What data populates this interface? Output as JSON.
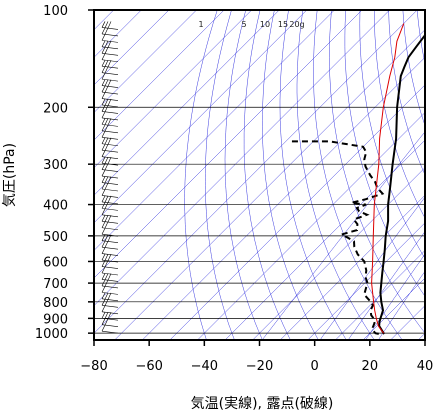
{
  "chart_data": {
    "type": "line",
    "subtype": "skew-t-log-p",
    "xlabel": "気温(実線), 露点(破線)",
    "ylabel": "気圧(hPa)",
    "x_ticks": [
      -80,
      -60,
      -40,
      -20,
      0,
      20,
      40
    ],
    "y_ticks": [
      100,
      200,
      300,
      400,
      500,
      600,
      700,
      800,
      900,
      1000
    ],
    "xlim": [
      -80,
      40
    ],
    "ylim": [
      1050,
      100
    ],
    "y_scale": "log",
    "grid": true,
    "mixing_ratio_labels": [
      "1",
      "5",
      "10",
      "15",
      "20g"
    ],
    "mixing_ratio_values": [
      1,
      5,
      10,
      15,
      20
    ],
    "colors": {
      "temperature": "#000000",
      "dewpoint": "#000000",
      "parcel": "#dd0000",
      "isotherms": "#3a3ae0",
      "adiabats": "#3a3ae0",
      "grid": "#000000"
    },
    "series": [
      {
        "kind": "temperature",
        "points": [
          [
            1005,
            25.5
          ],
          [
            1000,
            25
          ],
          [
            970,
            22.5
          ],
          [
            950,
            20.8
          ],
          [
            925,
            19.5
          ],
          [
            900,
            18.5
          ],
          [
            850,
            16.5
          ],
          [
            800,
            12.8
          ],
          [
            750,
            9.2
          ],
          [
            700,
            6
          ],
          [
            650,
            2.6
          ],
          [
            600,
            -1
          ],
          [
            550,
            -5
          ],
          [
            500,
            -9.5
          ],
          [
            450,
            -14
          ],
          [
            400,
            -20
          ],
          [
            350,
            -26
          ],
          [
            300,
            -33
          ],
          [
            250,
            -41
          ],
          [
            200,
            -52
          ],
          [
            175,
            -58
          ],
          [
            160,
            -62
          ],
          [
            150,
            -64
          ],
          [
            140,
            -66
          ],
          [
            130,
            -67
          ],
          [
            120,
            -68
          ],
          [
            110,
            -69.5
          ],
          [
            100,
            -70
          ]
        ]
      },
      {
        "kind": "dewpoint",
        "points": [
          [
            1005,
            23.5
          ],
          [
            1000,
            22
          ],
          [
            980,
            20
          ],
          [
            960,
            19
          ],
          [
            930,
            18
          ],
          [
            900,
            16
          ],
          [
            880,
            14
          ],
          [
            850,
            12
          ],
          [
            820,
            11
          ],
          [
            800,
            9
          ],
          [
            760,
            4
          ],
          [
            720,
            2
          ],
          [
            700,
            1
          ],
          [
            670,
            -2
          ],
          [
            640,
            -4
          ],
          [
            600,
            -8
          ],
          [
            570,
            -13
          ],
          [
            540,
            -17
          ],
          [
            520,
            -19
          ],
          [
            505,
            -23
          ],
          [
            495,
            -26
          ],
          [
            480,
            -22
          ],
          [
            460,
            -24
          ],
          [
            445,
            -27
          ],
          [
            430,
            -24
          ],
          [
            420,
            -28
          ],
          [
            410,
            -30
          ],
          [
            400,
            -28
          ],
          [
            395,
            -34
          ],
          [
            385,
            -30
          ],
          [
            370,
            -26
          ],
          [
            355,
            -30
          ],
          [
            340,
            -33
          ],
          [
            325,
            -37
          ],
          [
            305,
            -42
          ],
          [
            290,
            -45
          ],
          [
            275,
            -47
          ],
          [
            265,
            -50
          ],
          [
            255,
            -64
          ],
          [
            255,
            -78
          ]
        ]
      },
      {
        "kind": "parcel",
        "points": [
          [
            1000,
            25
          ],
          [
            950,
            20.5
          ],
          [
            900,
            17
          ],
          [
            850,
            13.5
          ],
          [
            800,
            10
          ],
          [
            700,
            2.5
          ],
          [
            600,
            -5
          ],
          [
            500,
            -14
          ],
          [
            400,
            -25
          ],
          [
            300,
            -38
          ],
          [
            250,
            -47
          ],
          [
            200,
            -57
          ],
          [
            160,
            -66
          ],
          [
            140,
            -71
          ],
          [
            125,
            -76
          ],
          [
            110,
            -80
          ]
        ]
      }
    ]
  }
}
